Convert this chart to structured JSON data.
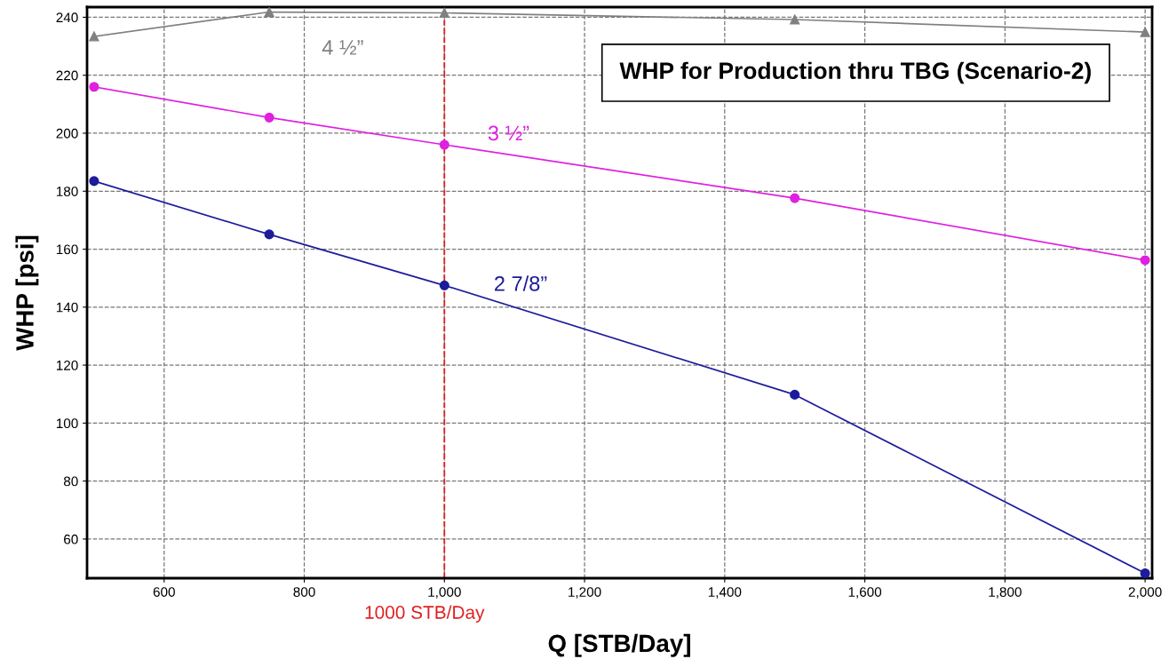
{
  "chart_data": {
    "type": "line",
    "title": "WHP for Production thru TBG (Scenario-2)",
    "xlabel": "Q [STB/Day]",
    "ylabel": "WHP [psi]",
    "x": [
      500,
      750,
      1000,
      1500,
      2000
    ],
    "series": [
      {
        "name": "4 ½”",
        "color": "#808080",
        "marker": "triangle",
        "values": [
          233.4,
          241.8,
          241.5,
          239.2,
          234.9
        ]
      },
      {
        "name": "3 ½”",
        "color": "#e020e0",
        "marker": "circle",
        "values": [
          216,
          205.4,
          196,
          177.6,
          156.2
        ]
      },
      {
        "name": "2 7/8”",
        "color": "#1c1c9c",
        "marker": "circle",
        "values": [
          183.5,
          165.1,
          147.5,
          109.8,
          48.2
        ]
      }
    ],
    "xlim": [
      490,
      2010
    ],
    "ylim": [
      46.5,
      243.5
    ],
    "xticks": [
      {
        "value": 600,
        "label": "600"
      },
      {
        "value": 800,
        "label": "800"
      },
      {
        "value": 1000,
        "label": "1,000"
      },
      {
        "value": 1200,
        "label": "1,200"
      },
      {
        "value": 1400,
        "label": "1,400"
      },
      {
        "value": 1600,
        "label": "1,600"
      },
      {
        "value": 1800,
        "label": "1,800"
      },
      {
        "value": 2000,
        "label": "2,000"
      }
    ],
    "yticks": [
      60,
      80,
      100,
      120,
      140,
      160,
      180,
      200,
      220,
      240
    ],
    "ref_lines": [
      {
        "axis": "x",
        "value": 1000,
        "label": "1000 STB/Day",
        "color": "#e02020",
        "line_style": "dashed"
      }
    ],
    "grid": true,
    "line_style": "solid"
  }
}
